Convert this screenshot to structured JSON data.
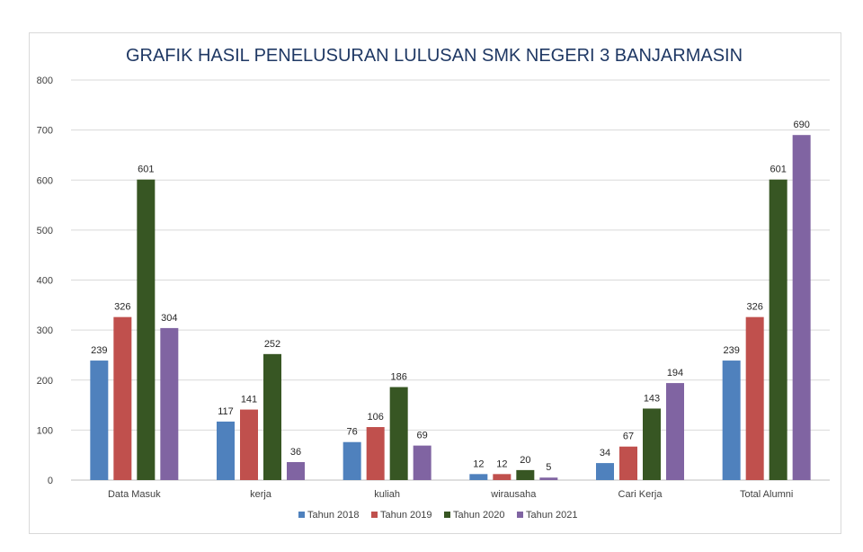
{
  "chart_data": {
    "type": "bar",
    "title": "GRAFIK HASIL PENELUSURAN LULUSAN SMK NEGERI 3 BANJARMASIN",
    "categories": [
      "Data Masuk",
      "kerja",
      "kuliah",
      "wirausaha",
      "Cari Kerja",
      "Total Alumni"
    ],
    "series": [
      {
        "name": "Tahun 2018",
        "color": "#4f81bd",
        "values": [
          239,
          117,
          76,
          12,
          34,
          239
        ]
      },
      {
        "name": "Tahun 2019",
        "color": "#c0504d",
        "values": [
          326,
          141,
          106,
          12,
          67,
          326
        ]
      },
      {
        "name": "Tahun 2020",
        "color": "#375623",
        "values": [
          601,
          252,
          186,
          20,
          143,
          601
        ]
      },
      {
        "name": "Tahun 2021",
        "color": "#8064a2",
        "values": [
          304,
          36,
          69,
          5,
          194,
          690
        ]
      }
    ],
    "y_ticks": [
      0,
      100,
      200,
      300,
      400,
      500,
      600,
      700,
      800
    ],
    "ylim": [
      0,
      800
    ],
    "xlabel": "",
    "ylabel": "",
    "grid": true,
    "legend_position": "bottom"
  }
}
